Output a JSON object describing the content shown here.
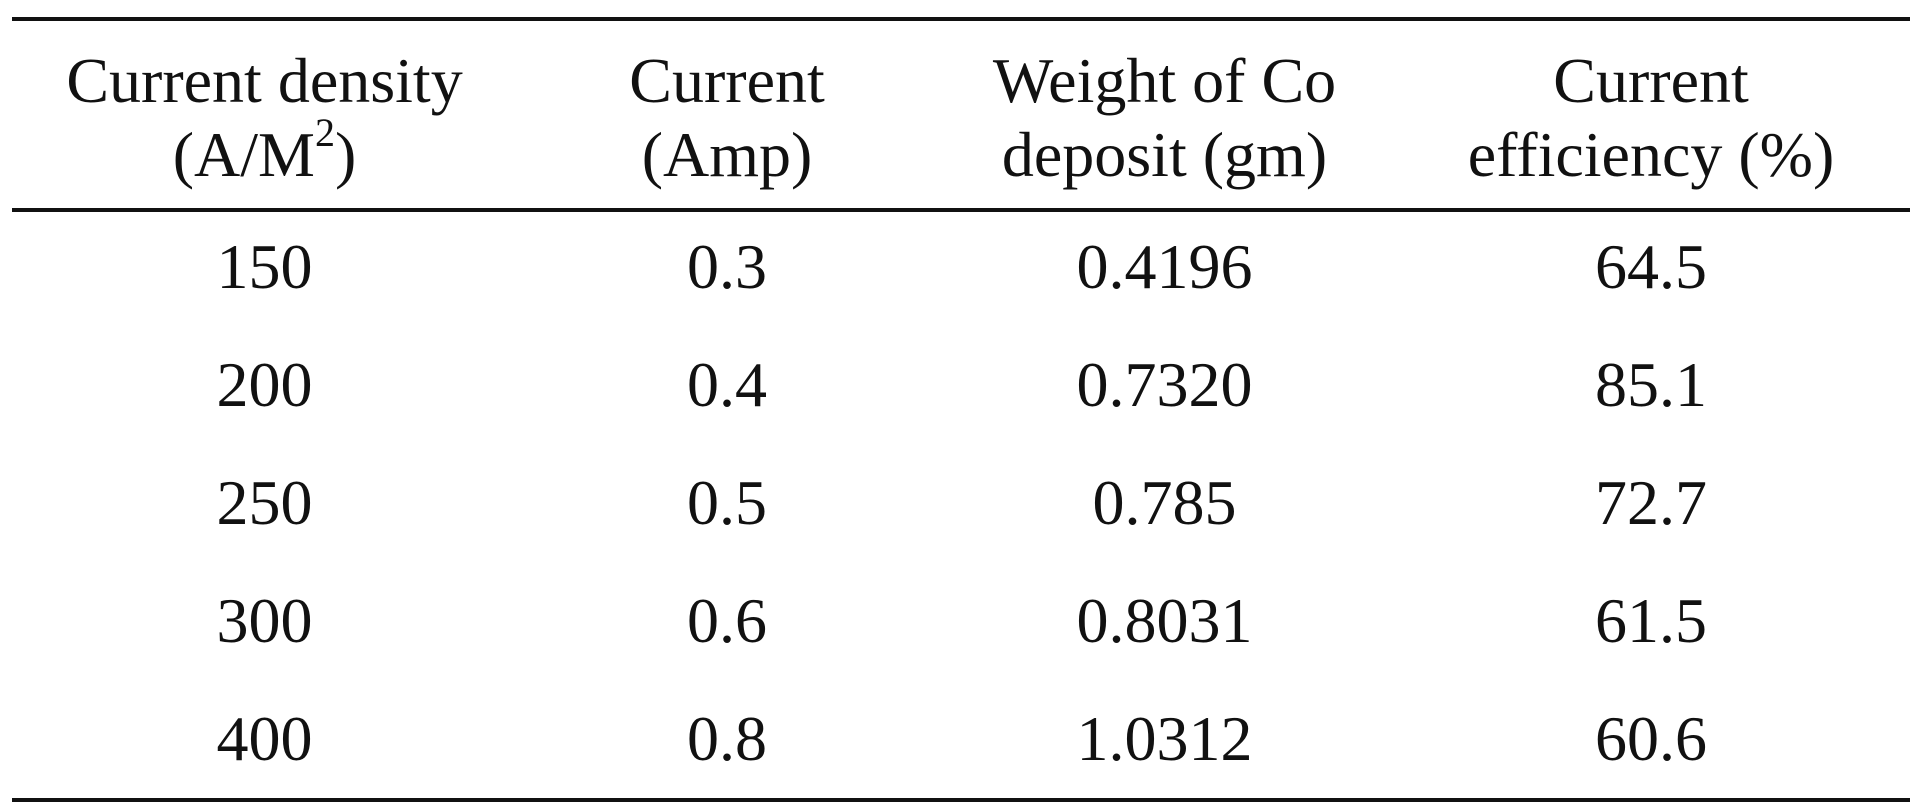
{
  "table": {
    "headers": [
      {
        "line1": "Current density",
        "line2_base": "(A/M",
        "line2_sup": "2",
        "line2_end": ")"
      },
      {
        "line1": "Current",
        "line2": "(Amp)"
      },
      {
        "line1": "Weight of Co",
        "line2": "deposit (gm)"
      },
      {
        "line1": "Current",
        "line2": "efficiency (%)"
      }
    ],
    "rows": [
      [
        "150",
        "0.3",
        "0.4196",
        "64.5"
      ],
      [
        "200",
        "0.4",
        "0.7320",
        "85.1"
      ],
      [
        "250",
        "0.5",
        "0.785",
        "72.7"
      ],
      [
        "300",
        "0.6",
        "0.8031",
        "61.5"
      ],
      [
        "400",
        "0.8",
        "1.0312",
        "60.6"
      ]
    ]
  }
}
